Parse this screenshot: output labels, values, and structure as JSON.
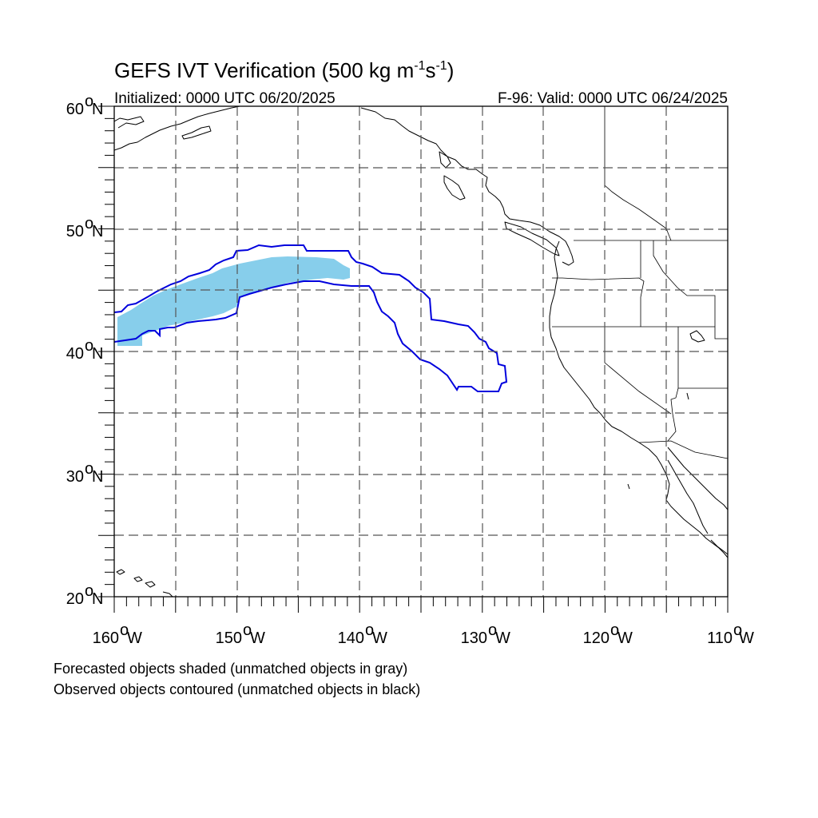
{
  "title": {
    "main": "GEFS IVT Verification (500 kg m",
    "sup1": "-1",
    "mid": "s",
    "sup2": "-1",
    "end": ")"
  },
  "subtitle": {
    "left": "Initialized: 0000 UTC 06/20/2025",
    "right": "F-96: Valid: 0000 UTC 06/24/2025"
  },
  "axes": {
    "lat_labels": [
      "20",
      "30",
      "40",
      "50",
      "60"
    ],
    "lon_labels": [
      "160",
      "150",
      "140",
      "130",
      "120",
      "110"
    ],
    "deg_symbol": "o",
    "north": "N",
    "west": "W"
  },
  "legend": {
    "line1": "Forecasted objects shaded (unmatched objects in gray)",
    "line2": "Observed objects contoured (unmatched objects in black)"
  },
  "colors": {
    "forecast_fill": "#87ceeb",
    "observed_contour": "#0000dd",
    "coastline": "#000000"
  },
  "map": {
    "lon_range": [
      -160,
      -110
    ],
    "lat_range": [
      20,
      60
    ],
    "grid": "dashed every 5 degrees"
  }
}
